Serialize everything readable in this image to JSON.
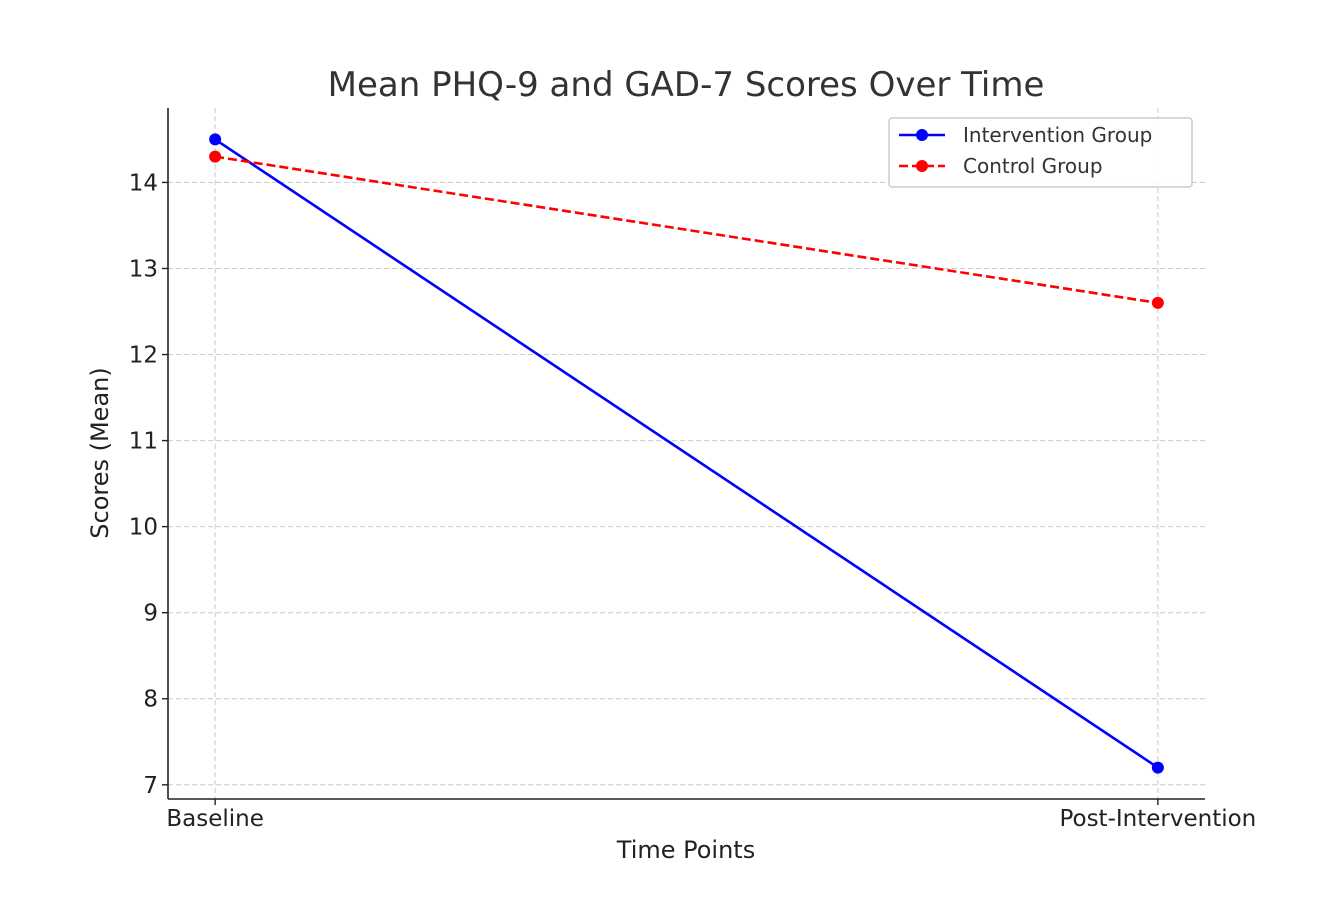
{
  "chart_data": {
    "type": "line",
    "title": "Mean PHQ-9 and GAD-7 Scores Over Time",
    "xlabel": "Time Points",
    "ylabel": "Scores (Mean)",
    "categories": [
      "Baseline",
      "Post-Intervention"
    ],
    "xlim": [
      -0.05,
      1.05
    ],
    "ylim": [
      6.835,
      14.865
    ],
    "yticks": [
      7,
      8,
      9,
      10,
      11,
      12,
      13,
      14
    ],
    "grid": true,
    "legend_position": "top-right",
    "series": [
      {
        "name": "Intervention Group",
        "values": [
          14.5,
          7.2
        ],
        "color": "#0000ff",
        "linestyle": "solid",
        "marker": "circle"
      },
      {
        "name": "Control Group",
        "values": [
          14.3,
          12.6
        ],
        "color": "#ff0000",
        "linestyle": "dashed",
        "marker": "circle"
      }
    ]
  }
}
